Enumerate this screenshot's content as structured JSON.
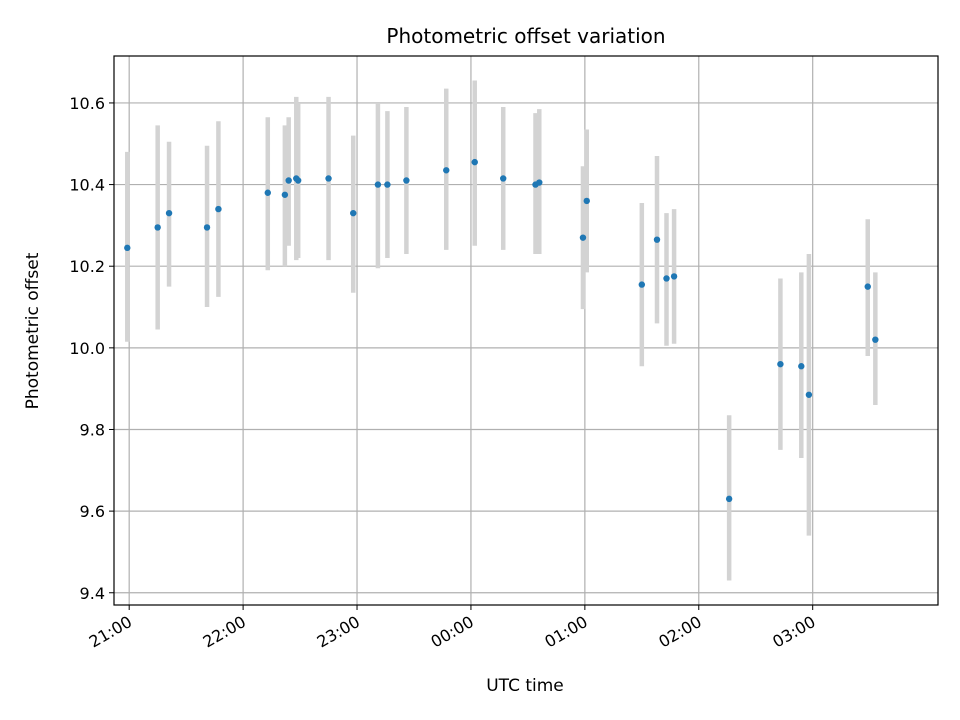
{
  "chart_data": {
    "type": "scatter",
    "title": "Photometric offset variation",
    "xlabel": "UTC time",
    "ylabel": "Photometric offset",
    "x_axis": {
      "kind": "time",
      "range": [
        "20:52",
        "04:06"
      ],
      "ticks": [
        "21:00",
        "22:00",
        "23:00",
        "00:00",
        "01:00",
        "02:00",
        "03:00"
      ]
    },
    "y_axis": {
      "range": [
        9.37,
        10.715
      ],
      "ticks": [
        "9.4",
        "9.6",
        "9.8",
        "10.0",
        "10.2",
        "10.4",
        "10.6"
      ]
    },
    "grid": true,
    "colors": {
      "point": "#1f77b4",
      "error_bar": "#d3d3d3",
      "grid": "#b0b0b0"
    },
    "series": [
      {
        "points": [
          {
            "x": "20:59",
            "y": 10.245,
            "lo": 10.015,
            "hi": 10.48
          },
          {
            "x": "21:15",
            "y": 10.295,
            "lo": 10.045,
            "hi": 10.545
          },
          {
            "x": "21:21",
            "y": 10.33,
            "lo": 10.15,
            "hi": 10.505
          },
          {
            "x": "21:41",
            "y": 10.295,
            "lo": 10.1,
            "hi": 10.495
          },
          {
            "x": "21:47",
            "y": 10.34,
            "lo": 10.125,
            "hi": 10.555
          },
          {
            "x": "22:13",
            "y": 10.38,
            "lo": 10.19,
            "hi": 10.565
          },
          {
            "x": "22:22",
            "y": 10.375,
            "lo": 10.2,
            "hi": 10.545
          },
          {
            "x": "22:24",
            "y": 10.41,
            "lo": 10.25,
            "hi": 10.565
          },
          {
            "x": "22:28",
            "y": 10.415,
            "lo": 10.215,
            "hi": 10.615
          },
          {
            "x": "22:29",
            "y": 10.41,
            "lo": 10.22,
            "hi": 10.6
          },
          {
            "x": "22:45",
            "y": 10.415,
            "lo": 10.215,
            "hi": 10.615
          },
          {
            "x": "22:58",
            "y": 10.33,
            "lo": 10.135,
            "hi": 10.52
          },
          {
            "x": "23:11",
            "y": 10.4,
            "lo": 10.195,
            "hi": 10.6
          },
          {
            "x": "23:16",
            "y": 10.4,
            "lo": 10.22,
            "hi": 10.58
          },
          {
            "x": "23:26",
            "y": 10.41,
            "lo": 10.23,
            "hi": 10.59
          },
          {
            "x": "23:47",
            "y": 10.435,
            "lo": 10.24,
            "hi": 10.635
          },
          {
            "x": "00:02",
            "y": 10.455,
            "lo": 10.25,
            "hi": 10.655
          },
          {
            "x": "00:17",
            "y": 10.415,
            "lo": 10.24,
            "hi": 10.59
          },
          {
            "x": "00:34",
            "y": 10.4,
            "lo": 10.23,
            "hi": 10.575
          },
          {
            "x": "00:36",
            "y": 10.405,
            "lo": 10.23,
            "hi": 10.585
          },
          {
            "x": "00:59",
            "y": 10.27,
            "lo": 10.095,
            "hi": 10.445
          },
          {
            "x": "01:01",
            "y": 10.36,
            "lo": 10.185,
            "hi": 10.535
          },
          {
            "x": "01:30",
            "y": 10.155,
            "lo": 9.955,
            "hi": 10.355
          },
          {
            "x": "01:38",
            "y": 10.265,
            "lo": 10.06,
            "hi": 10.47
          },
          {
            "x": "01:43",
            "y": 10.17,
            "lo": 10.005,
            "hi": 10.33
          },
          {
            "x": "01:47",
            "y": 10.175,
            "lo": 10.01,
            "hi": 10.34
          },
          {
            "x": "02:16",
            "y": 9.63,
            "lo": 9.43,
            "hi": 9.835
          },
          {
            "x": "02:43",
            "y": 9.96,
            "lo": 9.75,
            "hi": 10.17
          },
          {
            "x": "02:54",
            "y": 9.955,
            "lo": 9.73,
            "hi": 10.185
          },
          {
            "x": "02:58",
            "y": 9.885,
            "lo": 9.54,
            "hi": 10.23
          },
          {
            "x": "03:29",
            "y": 10.15,
            "lo": 9.98,
            "hi": 10.315
          },
          {
            "x": "03:33",
            "y": 10.02,
            "lo": 9.86,
            "hi": 10.185
          }
        ]
      }
    ]
  }
}
